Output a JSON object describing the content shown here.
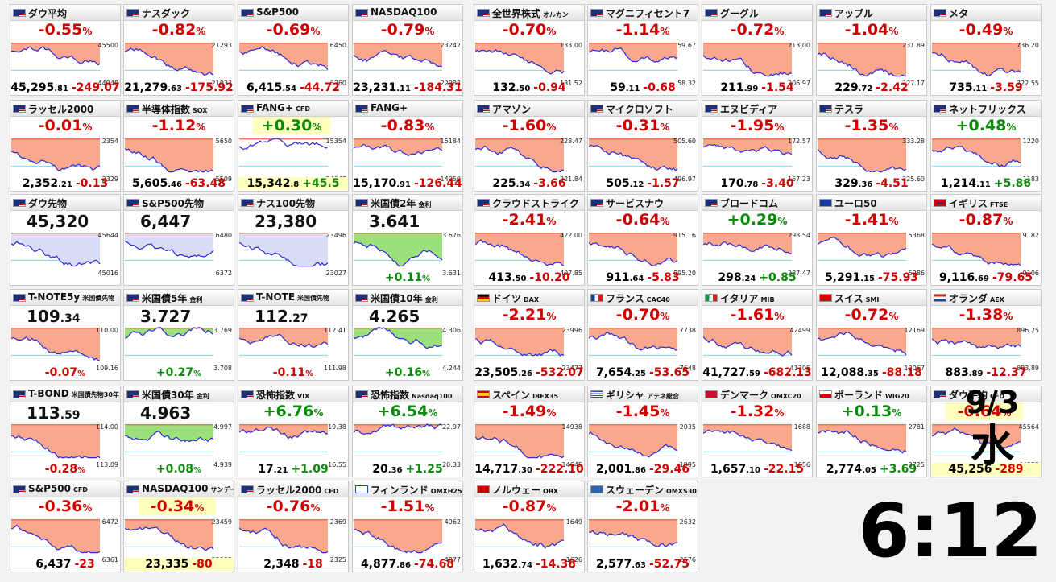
{
  "date": {
    "md": "9/3",
    "weekday": "水"
  },
  "clock": {
    "hh": "6",
    "sep": ":",
    "mm": "12"
  },
  "colors": {
    "down_fill": "#f9a88e",
    "up_fill": "#9be07b",
    "neutral_fill": "#d8dcf7",
    "line": "#2b2bd6",
    "up_text": "#0a8a0a",
    "down_text": "#d00000"
  },
  "tiles": [
    {
      "name": "ダウ平均",
      "sub": "",
      "flag": "us",
      "pct": "-0.55",
      "price": "45,295",
      "dec": ".81",
      "chg": "-249.07",
      "dir": "dn",
      "hi": "45500",
      "lo": "44948",
      "fill": "down",
      "seed": 1
    },
    {
      "name": "ナスダック",
      "sub": "",
      "flag": "us",
      "pct": "-0.82",
      "price": "21,279",
      "dec": ".63",
      "chg": "-175.92",
      "dir": "dn",
      "hi": "21293",
      "lo": "21033",
      "fill": "down",
      "seed": 2
    },
    {
      "name": "S&P500",
      "sub": "",
      "flag": "us",
      "pct": "-0.69",
      "price": "6,415",
      "dec": ".54",
      "chg": "-44.72",
      "dir": "dn",
      "hi": "6450",
      "lo": "6360",
      "fill": "down",
      "seed": 3
    },
    {
      "name": "NASDAQ100",
      "sub": "",
      "flag": "us",
      "pct": "-0.79",
      "price": "23,231",
      "dec": ".11",
      "chg": "-184.31",
      "dir": "dn",
      "hi": "23242",
      "lo": "22983",
      "fill": "down",
      "seed": 4
    },
    {
      "name": "全世界株式",
      "sub": "オルカン",
      "flag": "us",
      "pct": "-0.70",
      "price": "132",
      "dec": ".50",
      "chg": "-0.94",
      "dir": "dn",
      "hi": "133.00",
      "lo": "131.52",
      "fill": "down",
      "seed": 5
    },
    {
      "name": "マグニフィセント7",
      "sub": "",
      "flag": "us",
      "pct": "-1.14",
      "price": "59",
      "dec": ".11",
      "chg": "-0.68",
      "dir": "dn",
      "hi": "59.67",
      "lo": "58.32",
      "fill": "down",
      "seed": 6
    },
    {
      "name": "グーグル",
      "sub": "",
      "flag": "us",
      "pct": "-0.72",
      "price": "211",
      "dec": ".99",
      "chg": "-1.54",
      "dir": "dn",
      "hi": "213.00",
      "lo": "206.97",
      "fill": "down",
      "seed": 7
    },
    {
      "name": "アップル",
      "sub": "",
      "flag": "us",
      "pct": "-1.04",
      "price": "229",
      "dec": ".72",
      "chg": "-2.42",
      "dir": "dn",
      "hi": "231.89",
      "lo": "227.17",
      "fill": "down",
      "seed": 8
    },
    {
      "name": "メタ",
      "sub": "",
      "flag": "us",
      "pct": "-0.49",
      "price": "735",
      "dec": ".11",
      "chg": "-3.59",
      "dir": "dn",
      "hi": "736.20",
      "lo": "722.55",
      "fill": "down",
      "seed": 9
    },
    {
      "name": "ラッセル2000",
      "sub": "",
      "flag": "us",
      "pct": "-0.01",
      "price": "2,352",
      "dec": ".21",
      "chg": "-0.13",
      "dir": "dn",
      "hi": "2354",
      "lo": "2329",
      "fill": "down",
      "seed": 10
    },
    {
      "name": "半導体指数",
      "sub": "SOX",
      "flag": "us",
      "pct": "-1.12",
      "price": "5,605",
      "dec": ".46",
      "chg": "-63.48",
      "dir": "dn",
      "hi": "5650",
      "lo": "5509",
      "fill": "down",
      "seed": 11
    },
    {
      "name": "FANG+",
      "sub": "CFD",
      "flag": "us",
      "pct": "+0.30",
      "price": "15,342",
      "dec": ".8",
      "chg": "+45.5",
      "dir": "up",
      "hi": "15354",
      "lo": "14947",
      "fill": "none",
      "seed": 12,
      "hl": true
    },
    {
      "name": "FANG+",
      "sub": "",
      "flag": "us",
      "pct": "-0.83",
      "price": "15,170",
      "dec": ".91",
      "chg": "-126.44",
      "dir": "dn",
      "hi": "15184",
      "lo": "14950",
      "fill": "down",
      "seed": 13
    },
    {
      "name": "アマゾン",
      "sub": "",
      "flag": "us",
      "pct": "-1.60",
      "price": "225",
      "dec": ".34",
      "chg": "-3.66",
      "dir": "dn",
      "hi": "228.47",
      "lo": "221.84",
      "fill": "down",
      "seed": 14
    },
    {
      "name": "マイクロソフト",
      "sub": "",
      "flag": "us",
      "pct": "-0.31",
      "price": "505",
      "dec": ".12",
      "chg": "-1.57",
      "dir": "dn",
      "hi": "505.60",
      "lo": "496.97",
      "fill": "down",
      "seed": 15
    },
    {
      "name": "エヌビディア",
      "sub": "",
      "flag": "us",
      "pct": "-1.95",
      "price": "170",
      "dec": ".78",
      "chg": "-3.40",
      "dir": "dn",
      "hi": "172.57",
      "lo": "167.23",
      "fill": "down",
      "seed": 16
    },
    {
      "name": "テスラ",
      "sub": "",
      "flag": "us",
      "pct": "-1.35",
      "price": "329",
      "dec": ".36",
      "chg": "-4.51",
      "dir": "dn",
      "hi": "333.28",
      "lo": "325.60",
      "fill": "down",
      "seed": 17
    },
    {
      "name": "ネットフリックス",
      "sub": "",
      "flag": "us",
      "pct": "+0.48",
      "price": "1,214",
      "dec": ".11",
      "chg": "+5.86",
      "dir": "up",
      "hi": "1220",
      "lo": "1183",
      "fill": "down",
      "seed": 18
    },
    {
      "name": "ダウ先物",
      "sub": "",
      "flag": "us",
      "big": "45,320",
      "price": "",
      "dec": "",
      "chg": "",
      "dir": "dn",
      "hi": "45644",
      "lo": "45016",
      "fill": "neutral",
      "seed": 19
    },
    {
      "name": "S&P500先物",
      "sub": "",
      "flag": "us",
      "big": "6,447",
      "price": "",
      "dec": "",
      "chg": "",
      "dir": "dn",
      "hi": "6480",
      "lo": "6372",
      "fill": "neutral",
      "seed": 20
    },
    {
      "name": "ナス100先物",
      "sub": "",
      "flag": "us",
      "big": "23,380",
      "price": "",
      "dec": "",
      "chg": "",
      "dir": "dn",
      "hi": "23496",
      "lo": "23027",
      "fill": "neutral",
      "seed": 21
    },
    {
      "name": "米国債2年",
      "sub": "金利",
      "flag": "us",
      "big": "3.641",
      "price": "",
      "dec": "",
      "chg": "+0.11",
      "dir": "up",
      "hi": "3.676",
      "lo": "3.631",
      "fill": "up",
      "seed": 22,
      "pctonly": true
    },
    {
      "name": "クラウドストライク",
      "sub": "",
      "flag": "us",
      "pct": "-2.41",
      "price": "413",
      "dec": ".50",
      "chg": "-10.20",
      "dir": "dn",
      "hi": "422.00",
      "lo": "407.85",
      "fill": "down",
      "seed": 23
    },
    {
      "name": "サービスナウ",
      "sub": "",
      "flag": "us",
      "pct": "-0.64",
      "price": "911",
      "dec": ".64",
      "chg": "-5.83",
      "dir": "dn",
      "hi": "915.16",
      "lo": "895.20",
      "fill": "down",
      "seed": 24
    },
    {
      "name": "ブロードコム",
      "sub": "",
      "flag": "us",
      "pct": "+0.29",
      "price": "298",
      "dec": ".24",
      "chg": "+0.85",
      "dir": "up",
      "hi": "298.54",
      "lo": "287.47",
      "fill": "down",
      "seed": 25
    },
    {
      "name": "ユーロ50",
      "sub": "",
      "flag": "eu",
      "pct": "-1.41",
      "price": "5,291",
      "dec": ".15",
      "chg": "-75.93",
      "dir": "dn",
      "hi": "5368",
      "lo": "5286",
      "fill": "down",
      "seed": 26
    },
    {
      "name": "イギリス",
      "sub": "FTSE",
      "flag": "uk",
      "pct": "-0.87",
      "price": "9,116",
      "dec": ".69",
      "chg": "-79.65",
      "dir": "dn",
      "hi": "9182",
      "lo": "9106",
      "fill": "down",
      "seed": 27
    },
    {
      "name": "T-NOTE5y",
      "sub": "米国債先物",
      "flag": "us",
      "big": "109",
      "bigdec": ".34",
      "price": "",
      "dec": "",
      "chg": "-0.07",
      "dir": "dn",
      "hi": "110.00",
      "lo": "109.16",
      "fill": "down",
      "seed": 28,
      "pctonly": true
    },
    {
      "name": "米国債5年",
      "sub": "金利",
      "flag": "us",
      "big": "3.727",
      "price": "",
      "dec": "",
      "chg": "+0.27",
      "dir": "up",
      "hi": "3.769",
      "lo": "3.708",
      "fill": "up",
      "seed": 29,
      "pctonly": true
    },
    {
      "name": "T-NOTE",
      "sub": "米国債先物",
      "flag": "us",
      "big": "112",
      "bigdec": ".27",
      "price": "",
      "dec": "",
      "chg": "-0.11",
      "dir": "dn",
      "hi": "112.41",
      "lo": "111.98",
      "fill": "down",
      "seed": 30,
      "pctonly": true
    },
    {
      "name": "米国債10年",
      "sub": "金利",
      "flag": "us",
      "big": "4.265",
      "price": "",
      "dec": "",
      "chg": "+0.16",
      "dir": "up",
      "hi": "4.306",
      "lo": "4.244",
      "fill": "up",
      "seed": 31,
      "pctonly": true
    },
    {
      "name": "ドイツ",
      "sub": "DAX",
      "flag": "de",
      "pct": "-2.21",
      "price": "23,505",
      "dec": ".26",
      "chg": "-532.07",
      "dir": "dn",
      "hi": "23996",
      "lo": "23477",
      "fill": "down",
      "seed": 32
    },
    {
      "name": "フランス",
      "sub": "CAC40",
      "flag": "fr",
      "pct": "-0.70",
      "price": "7,654",
      "dec": ".25",
      "chg": "-53.65",
      "dir": "dn",
      "hi": "7738",
      "lo": "7648",
      "fill": "down",
      "seed": 33
    },
    {
      "name": "イタリア",
      "sub": "MIB",
      "flag": "it",
      "pct": "-1.61",
      "price": "41,727",
      "dec": ".59",
      "chg": "-682.13",
      "dir": "dn",
      "hi": "42499",
      "lo": "41705",
      "fill": "down",
      "seed": 34
    },
    {
      "name": "スイス",
      "sub": "SMI",
      "flag": "ch",
      "pct": "-0.72",
      "price": "12,088",
      "dec": ".35",
      "chg": "-88.18",
      "dir": "dn",
      "hi": "12169",
      "lo": "12067",
      "fill": "down",
      "seed": 35
    },
    {
      "name": "オランダ",
      "sub": "AEX",
      "flag": "nl",
      "pct": "-1.38",
      "price": "883",
      "dec": ".89",
      "chg": "-12.37",
      "dir": "dn",
      "hi": "896.25",
      "lo": "883.89",
      "fill": "down",
      "seed": 36
    },
    {
      "name": "T-BOND",
      "sub": "米国債先物30年",
      "flag": "us",
      "big": "113",
      "bigdec": ".59",
      "price": "",
      "dec": "",
      "chg": "-0.28",
      "dir": "dn",
      "hi": "114.00",
      "lo": "113.09",
      "fill": "down",
      "seed": 37,
      "pctonly": true
    },
    {
      "name": "米国債30年",
      "sub": "金利",
      "flag": "us",
      "big": "4.963",
      "price": "",
      "dec": "",
      "chg": "+0.08",
      "dir": "up",
      "hi": "4.997",
      "lo": "4.939",
      "fill": "up",
      "seed": 38,
      "pctonly": true
    },
    {
      "name": "恐怖指数",
      "sub": "VIX",
      "flag": "us",
      "pct": "+6.76",
      "price": "17",
      "dec": ".21",
      "chg": "+1.09",
      "dir": "up",
      "hi": "19.38",
      "lo": "16.55",
      "fill": "down",
      "seed": 39,
      "vix": true
    },
    {
      "name": "恐怖指数",
      "sub": "Nasdaq100",
      "flag": "us",
      "pct": "+6.54",
      "price": "20",
      "dec": ".36",
      "chg": "+1.25",
      "dir": "up",
      "hi": "22.97",
      "lo": "20.33",
      "fill": "down",
      "seed": 40,
      "vix": true
    },
    {
      "name": "スペイン",
      "sub": "IBEX35",
      "flag": "es",
      "pct": "-1.49",
      "price": "14,717",
      "dec": ".30",
      "chg": "-222.10",
      "dir": "dn",
      "hi": "14938",
      "lo": "14645",
      "fill": "down",
      "seed": 41
    },
    {
      "name": "ギリシャ",
      "sub": "アテネ総合",
      "flag": "gr",
      "pct": "-1.45",
      "price": "2,001",
      "dec": ".86",
      "chg": "-29.46",
      "dir": "dn",
      "hi": "2035",
      "lo": "1995",
      "fill": "down",
      "seed": 42
    },
    {
      "name": "デンマーク",
      "sub": "OMXC20",
      "flag": "dk",
      "pct": "-1.32",
      "price": "1,657",
      "dec": ".10",
      "chg": "-22.15",
      "dir": "dn",
      "hi": "1688",
      "lo": "1656",
      "fill": "down",
      "seed": 43
    },
    {
      "name": "ポーランド",
      "sub": "WIG20",
      "flag": "pl",
      "pct": "+0.13",
      "price": "2,774",
      "dec": ".05",
      "chg": "+3.69",
      "dir": "up",
      "hi": "2781",
      "lo": "2725",
      "fill": "down",
      "seed": 44
    },
    {
      "name": "ダウ平均",
      "sub": "CFD",
      "flag": "us",
      "pct": "-0.64",
      "price": "45,256",
      "dec": "",
      "chg": "-289",
      "dir": "dn",
      "hi": "45564",
      "lo": "44925",
      "fill": "down",
      "seed": 45,
      "hl": true
    },
    {
      "name": "S&P500",
      "sub": "CFD",
      "flag": "us",
      "pct": "-0.36",
      "price": "6,437",
      "dec": "",
      "chg": "-23",
      "dir": "dn",
      "hi": "6472",
      "lo": "6361",
      "fill": "down",
      "seed": 46
    },
    {
      "name": "NASDAQ100",
      "sub": "サンデー",
      "flag": "us",
      "pct": "-0.34",
      "price": "23,335",
      "dec": "",
      "chg": "-80",
      "dir": "dn",
      "hi": "23459",
      "lo": "22982",
      "fill": "down",
      "seed": 47,
      "hl": true
    },
    {
      "name": "ラッセル2000",
      "sub": "CFD",
      "flag": "us",
      "pct": "-0.76",
      "price": "2,348",
      "dec": "",
      "chg": "-18",
      "dir": "dn",
      "hi": "2369",
      "lo": "2325",
      "fill": "down",
      "seed": 48
    },
    {
      "name": "フィンランド",
      "sub": "OMXH25",
      "flag": "fi",
      "pct": "-1.51",
      "price": "4,877",
      "dec": ".86",
      "chg": "-74.68",
      "dir": "dn",
      "hi": "4962",
      "lo": "4877",
      "fill": "down",
      "seed": 49
    },
    {
      "name": "ノルウェー",
      "sub": "OBX",
      "flag": "no",
      "pct": "-0.87",
      "price": "1,632",
      "dec": ".74",
      "chg": "-14.38",
      "dir": "dn",
      "hi": "1649",
      "lo": "1626",
      "fill": "down",
      "seed": 50
    },
    {
      "name": "スウェーデン",
      "sub": "OMXS30",
      "flag": "se",
      "pct": "-2.01",
      "price": "2,577",
      "dec": ".63",
      "chg": "-52.75",
      "dir": "dn",
      "hi": "2632",
      "lo": "2576",
      "fill": "down",
      "seed": 51
    }
  ]
}
